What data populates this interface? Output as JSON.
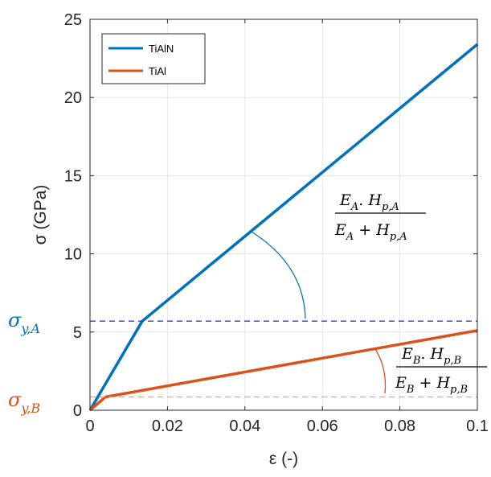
{
  "chart_data": {
    "type": "line",
    "xlabel": "ε (-)",
    "ylabel": "σ (GPa)",
    "xlim": [
      0,
      0.1
    ],
    "ylim": [
      0,
      25
    ],
    "x_ticks": [
      "0",
      "0.02",
      "0.04",
      "0.06",
      "0.08",
      "0.1"
    ],
    "y_ticks": [
      "0",
      "5",
      "10",
      "15",
      "20",
      "25"
    ],
    "x_tick_values": [
      0,
      0.02,
      0.04,
      0.06,
      0.08,
      0.1
    ],
    "y_tick_values": [
      0,
      5,
      10,
      15,
      20,
      25
    ],
    "grid": true,
    "legend_position": "top-left",
    "series": [
      {
        "name": "TiAlN",
        "color": "#0072BD",
        "x": [
          0,
          0.0135,
          0.1
        ],
        "y": [
          0,
          5.7,
          23.4
        ]
      },
      {
        "name": "TiAl",
        "color": "#D95319",
        "x": [
          0,
          0.004,
          0.1
        ],
        "y": [
          0,
          0.85,
          5.1
        ]
      }
    ],
    "reference_lines": [
      {
        "label_main": "σ",
        "label_sub": "y,A",
        "y": 5.7,
        "color": "#3333dd"
      },
      {
        "label_main": "σ",
        "label_sub": "y,B",
        "y": 0.85,
        "color": "#E8A070"
      }
    ],
    "annotations": [
      {
        "id": "A",
        "color": "#0072BD",
        "numerator": {
          "E": "E",
          "Esub": "A",
          "dot": ". ",
          "H": "H",
          "Hsub": "p,A"
        },
        "denominator": {
          "E": "E",
          "Esub": "A",
          "plus": " + ",
          "H": "H",
          "Hsub": "p,A"
        }
      },
      {
        "id": "B",
        "color": "#D95319",
        "numerator": {
          "E": "E",
          "Esub": "B",
          "dot": ". ",
          "H": "H",
          "Hsub": "p,B"
        },
        "denominator": {
          "E": "E",
          "Esub": "B",
          "plus": " + ",
          "H": "H",
          "Hsub": "p,B"
        }
      }
    ]
  }
}
